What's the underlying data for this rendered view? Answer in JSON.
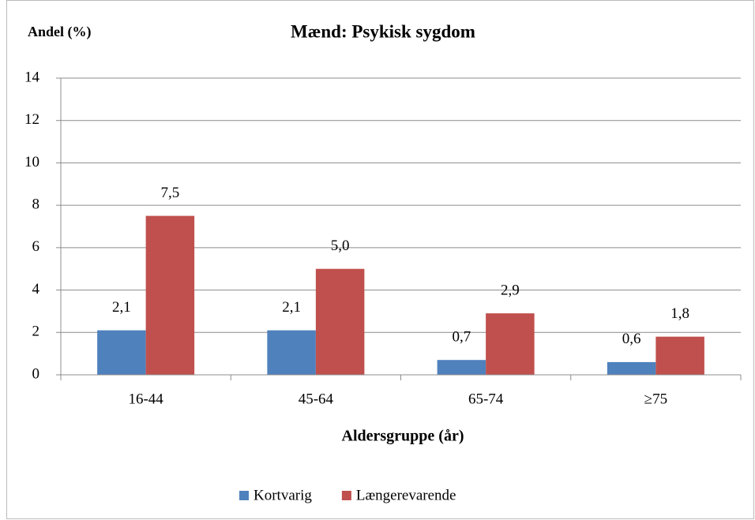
{
  "chart_data": {
    "type": "bar",
    "title": "Mænd: Psykisk sygdom",
    "y_label": "Andel (%)",
    "x_label": "Aldersgruppe (år)",
    "categories": [
      "16-44",
      "45-64",
      "65-74",
      "≥75"
    ],
    "series": [
      {
        "name": "Kortvarig",
        "color": "#4f81bd",
        "values": [
          2.1,
          2.1,
          0.7,
          0.6
        ],
        "value_labels": [
          "2,1",
          "2,1",
          "0,7",
          "0,6"
        ]
      },
      {
        "name": "Længerevarende",
        "color": "#c0504d",
        "values": [
          7.5,
          5.0,
          2.9,
          1.8
        ],
        "value_labels": [
          "7,5",
          "5,0",
          "2,9",
          "1,8"
        ]
      }
    ],
    "ylim": [
      0,
      14
    ],
    "yticks": [
      0,
      2,
      4,
      6,
      8,
      10,
      12,
      14
    ],
    "grid": true,
    "legend": "bottom"
  }
}
